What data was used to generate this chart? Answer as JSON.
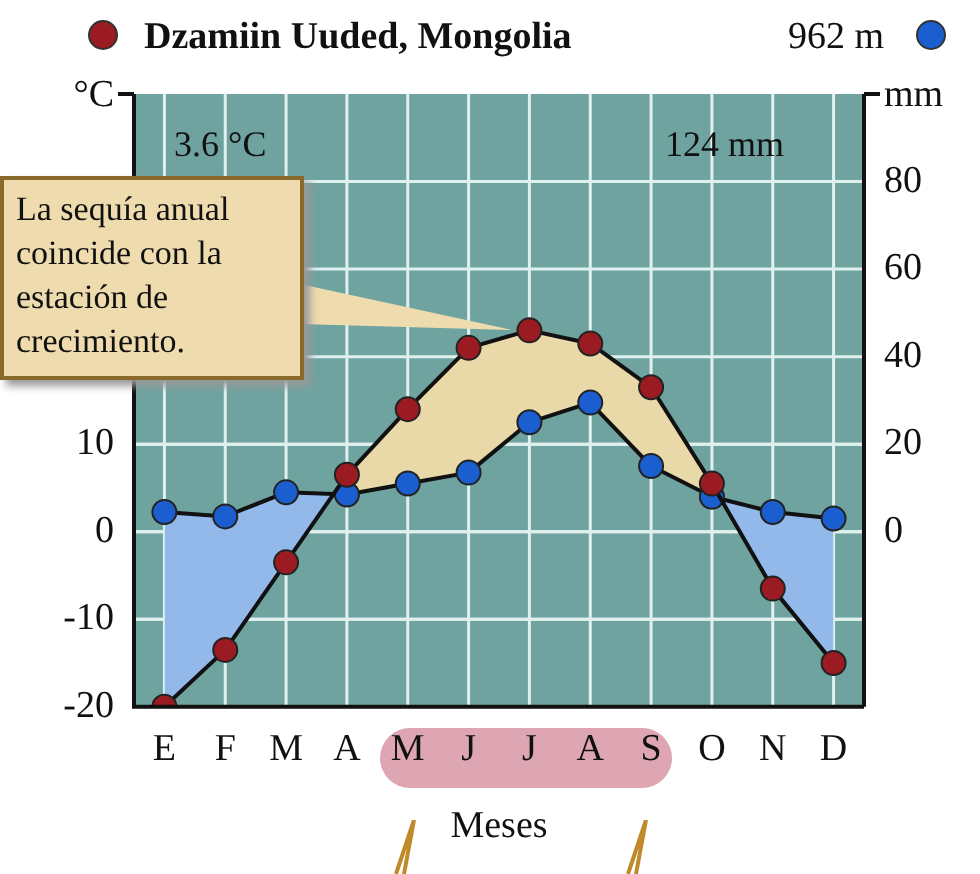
{
  "chart_data": {
    "type": "line",
    "title": "Dzamiin Uuded, Mongolia",
    "xlabel": "Meses",
    "ylabel": "°C",
    "y2label": "mm",
    "categories": [
      "E",
      "F",
      "M",
      "A",
      "M",
      "J",
      "J",
      "A",
      "S",
      "O",
      "N",
      "D"
    ],
    "series": [
      {
        "color": "#9b1b22",
        "values": [
          -20,
          -13.5,
          -3.5,
          6.5,
          14,
          21,
          23,
          21.5,
          16.5,
          5.5,
          -6.5,
          -15
        ]
      },
      {
        "axis": "y2",
        "color": "#1a5ed0",
        "values": [
          4.5,
          3.5,
          9,
          8.5,
          11,
          13.5,
          25,
          29.5,
          15,
          8,
          4.5,
          3
        ]
      }
    ],
    "ylim": [
      -20,
      50
    ],
    "yticks": [
      -20,
      -10,
      0,
      10
    ],
    "y2lim": [
      -40,
      100
    ],
    "y2ticks": [
      {
        "value": -20,
        "label": null
      },
      0,
      20,
      40,
      60,
      80
    ],
    "annotations": [
      "962 m",
      "3.6 °C",
      "124 mm",
      "La sequía anual coincide con la estación de crecimiento."
    ],
    "grid": true,
    "legend": false,
    "marker": "circle",
    "line_style": "solid"
  }
}
